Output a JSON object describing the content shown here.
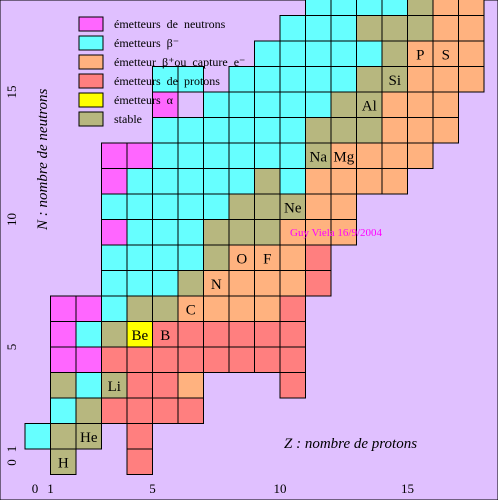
{
  "legend": [
    {
      "key": "n",
      "label": "émetteurs  de  neutrons"
    },
    {
      "key": "bm",
      "label": "émetteurs  β⁻"
    },
    {
      "key": "bp",
      "label": "émetteur  β⁺ou  capture  e⁻"
    },
    {
      "key": "p",
      "label": "émetteurs  de  protons"
    },
    {
      "key": "a",
      "label": "émetteurs  α"
    },
    {
      "key": "s",
      "label": "stable"
    }
  ],
  "colors": {
    "background": "#e0c0ff",
    "grid": "#000000",
    "n": "#ff66ff",
    "bm": "#66ffff",
    "bp": "#ffb27f",
    "p": "#ff7f7f",
    "a": "#ffff00",
    "s": "#b7b77f",
    "credit": "#ff00ff"
  },
  "ylabel": "N :  nombre de neutrons",
  "xlabel": "Z :  nombre de protons",
  "credit": "Guy Viela 16/9/2004",
  "chart_data": {
    "type": "heatmap",
    "x_ticks": [
      "0",
      "1",
      "5",
      "10",
      "15"
    ],
    "y_ticks": [
      "0",
      "1",
      "5",
      "10",
      "15"
    ],
    "element_labels": [
      {
        "text": "H",
        "z": 1,
        "n": 0
      },
      {
        "text": "He",
        "z": 2,
        "n": 1
      },
      {
        "text": "Li",
        "z": 3,
        "n": 3
      },
      {
        "text": "Be",
        "z": 4,
        "n": 5
      },
      {
        "text": "B",
        "z": 5,
        "n": 5
      },
      {
        "text": "C",
        "z": 6,
        "n": 6
      },
      {
        "text": "N",
        "z": 7,
        "n": 7
      },
      {
        "text": "O",
        "z": 8,
        "n": 8
      },
      {
        "text": "F",
        "z": 9,
        "n": 8
      },
      {
        "text": "Ne",
        "z": 10,
        "n": 10
      },
      {
        "text": "Na",
        "z": 11,
        "n": 12
      },
      {
        "text": "Mg",
        "z": 12,
        "n": 12
      },
      {
        "text": "Al",
        "z": 13,
        "n": 14
      },
      {
        "text": "Si",
        "z": 14,
        "n": 15
      },
      {
        "text": "P",
        "z": 15,
        "n": 16
      },
      {
        "text": "S",
        "z": 16,
        "n": 16
      }
    ],
    "cells": [
      {
        "n": 0,
        "row": [
          "",
          "s",
          "",
          "",
          "p",
          "",
          "",
          "",
          "",
          "",
          "",
          "",
          "",
          "",
          "",
          "",
          "",
          ""
        ]
      },
      {
        "n": 1,
        "row": [
          "bm",
          "s",
          "s",
          "",
          "p",
          "",
          "",
          "",
          "",
          "",
          "",
          "",
          "",
          "",
          "",
          "",
          "",
          ""
        ]
      },
      {
        "n": 2,
        "row": [
          "",
          "bm",
          "s",
          "p",
          "p",
          "p",
          "p",
          "",
          "",
          "",
          "",
          "",
          "",
          "",
          "",
          "",
          "",
          ""
        ]
      },
      {
        "n": 3,
        "row": [
          "",
          "s",
          "bm",
          "s",
          "p",
          "p",
          "bp",
          "",
          "",
          "",
          "p",
          "",
          "",
          "",
          "",
          "",
          "",
          ""
        ]
      },
      {
        "n": 4,
        "row": [
          "",
          "n",
          "n",
          "p",
          "p",
          "p",
          "p",
          "p",
          "p",
          "p",
          "p",
          "",
          "",
          "",
          "",
          "",
          "",
          ""
        ]
      },
      {
        "n": 5,
        "row": [
          "",
          "n",
          "bm",
          "s",
          "a",
          "p",
          "p",
          "p",
          "p",
          "p",
          "p",
          "",
          "",
          "",
          "",
          "",
          "",
          ""
        ]
      },
      {
        "n": 6,
        "row": [
          "",
          "n",
          "n",
          "bm",
          "s",
          "s",
          "bp",
          "bp",
          "bp",
          "bp",
          "p",
          "",
          "",
          "",
          "",
          "",
          "",
          ""
        ]
      },
      {
        "n": 7,
        "row": [
          "",
          "",
          "",
          "bm",
          "bm",
          "bm",
          "s",
          "bp",
          "bp",
          "bp",
          "bp",
          "p",
          "",
          "",
          "",
          "",
          "",
          ""
        ]
      },
      {
        "n": 8,
        "row": [
          "",
          "",
          "",
          "bm",
          "bm",
          "bm",
          "bm",
          "s",
          "bp",
          "bp",
          "bp",
          "p",
          "",
          "",
          "",
          "",
          "",
          ""
        ]
      },
      {
        "n": 9,
        "row": [
          "",
          "",
          "",
          "n",
          "bm",
          "bm",
          "bm",
          "s",
          "s",
          "s",
          "bp",
          "bp",
          "bp",
          "",
          "",
          "",
          "",
          ""
        ]
      },
      {
        "n": 10,
        "row": [
          "",
          "",
          "",
          "bm",
          "bm",
          "bm",
          "bm",
          "bm",
          "s",
          "s",
          "s",
          "bp",
          "bp",
          "",
          "",
          "",
          "",
          ""
        ]
      },
      {
        "n": 11,
        "row": [
          "",
          "",
          "",
          "n",
          "bm",
          "bm",
          "bm",
          "bm",
          "bm",
          "s",
          "bm",
          "bp",
          "bp",
          "bp",
          "bp",
          "",
          "",
          ""
        ]
      },
      {
        "n": 12,
        "row": [
          "",
          "",
          "",
          "n",
          "n",
          "bm",
          "bm",
          "bm",
          "bm",
          "bm",
          "bm",
          "s",
          "bp",
          "bp",
          "bp",
          "bp",
          "",
          ""
        ]
      },
      {
        "n": 13,
        "row": [
          "",
          "",
          "",
          "",
          "",
          "bm",
          "bm",
          "bm",
          "bm",
          "bm",
          "bm",
          "s",
          "s",
          "s",
          "bp",
          "bp",
          "bp",
          ""
        ]
      },
      {
        "n": 14,
        "row": [
          "",
          "",
          "",
          "",
          "",
          "n",
          "",
          "bm",
          "bm",
          "bm",
          "bm",
          "bm",
          "s",
          "s",
          "bp",
          "bp",
          "bp",
          ""
        ]
      },
      {
        "n": 15,
        "row": [
          "",
          "",
          "",
          "",
          "",
          "bm",
          "bm",
          "",
          "bm",
          "bm",
          "bm",
          "bm",
          "bm",
          "s",
          "s",
          "bp",
          "bp",
          "bp"
        ]
      },
      {
        "n": 16,
        "row": [
          "",
          "",
          "",
          "",
          "",
          "",
          "",
          "",
          "",
          "bm",
          "bm",
          "bm",
          "bm",
          "bm",
          "s",
          "bp",
          "bp",
          "bp"
        ]
      },
      {
        "n": 17,
        "row": [
          "",
          "",
          "",
          "",
          "",
          "",
          "",
          "",
          "",
          "",
          "bm",
          "bm",
          "bm",
          "s",
          "s",
          "s",
          "bp",
          "bp"
        ]
      },
      {
        "n": 18,
        "row": [
          "",
          "",
          "",
          "",
          "",
          "",
          "",
          "",
          "",
          "",
          "",
          "bm",
          "bm",
          "bm",
          "bm",
          "s",
          "bp",
          "bp"
        ]
      },
      {
        "n": 19,
        "row": [
          "",
          "",
          "",
          "",
          "",
          "",
          "",
          "",
          "",
          "",
          "",
          "",
          "bm",
          "bm",
          "s",
          "s",
          "bm",
          "s"
        ]
      },
      {
        "n": 20,
        "row": [
          "",
          "",
          "",
          "",
          "",
          "",
          "",
          "",
          "",
          "",
          "",
          "",
          "",
          "",
          "",
          "",
          "",
          ""
        ]
      }
    ]
  }
}
